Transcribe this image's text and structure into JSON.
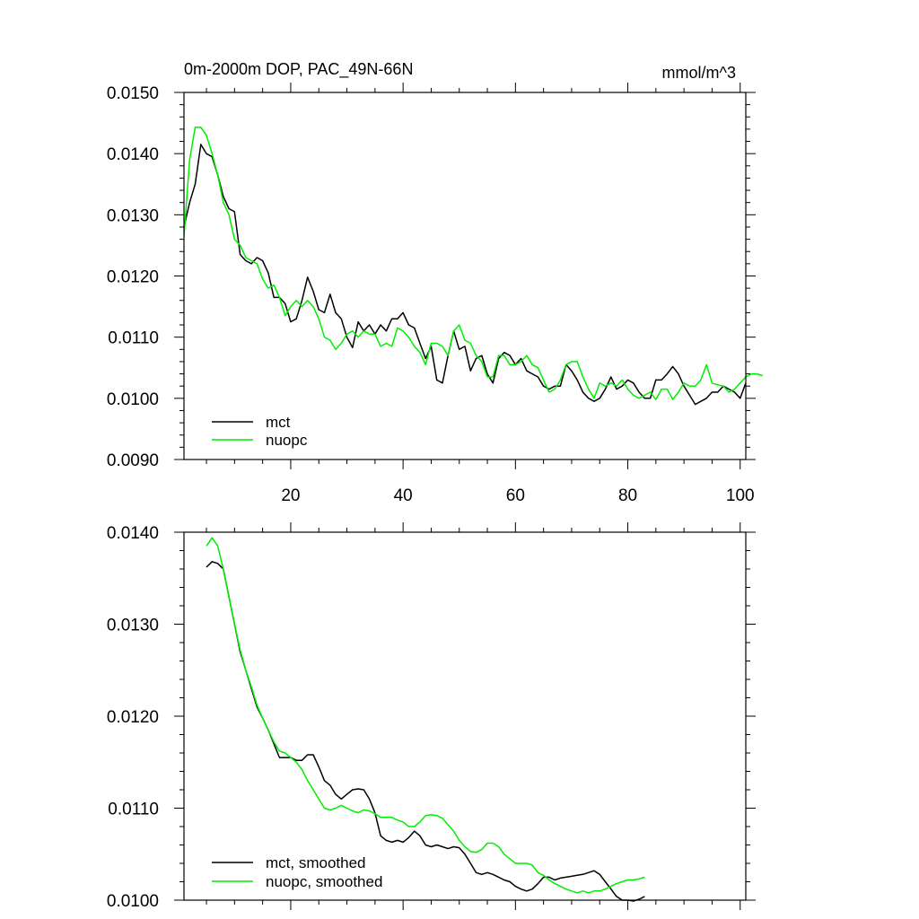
{
  "chart_data": [
    {
      "type": "line",
      "title_left": "0m-2000m DOP, PAC_49N-66N",
      "title_right": "mmol/m^3",
      "xlabel": "",
      "ylabel": "",
      "xlim": [
        1,
        101
      ],
      "ylim": [
        0.009,
        0.015
      ],
      "x_ticks": [
        20,
        40,
        60,
        80,
        100
      ],
      "x_tick_labels": [
        "20",
        "40",
        "60",
        "80",
        "100"
      ],
      "y_ticks": [
        0.009,
        0.01,
        0.011,
        0.012,
        0.013,
        0.014,
        0.015
      ],
      "y_tick_labels": [
        "0.0090",
        "0.0100",
        "0.0110",
        "0.0120",
        "0.0130",
        "0.0140",
        "0.0150"
      ],
      "legend_position": "bottom-left",
      "series": [
        {
          "name": "mct",
          "color": "#000000",
          "x_start": 1,
          "values": [
            0.0128,
            0.0132,
            0.0135,
            0.01415,
            0.014,
            0.01395,
            0.01365,
            0.0133,
            0.0131,
            0.01305,
            0.01235,
            0.01225,
            0.0122,
            0.0123,
            0.01225,
            0.01205,
            0.01165,
            0.01165,
            0.01155,
            0.01125,
            0.0113,
            0.0116,
            0.01198,
            0.01175,
            0.01145,
            0.0114,
            0.0117,
            0.0114,
            0.0113,
            0.011,
            0.01083,
            0.01125,
            0.0111,
            0.0112,
            0.01105,
            0.0112,
            0.0111,
            0.0113,
            0.0113,
            0.0114,
            0.0112,
            0.01115,
            0.0109,
            0.01065,
            0.01085,
            0.0103,
            0.01025,
            0.0107,
            0.0111,
            0.0108,
            0.01085,
            0.01045,
            0.01065,
            0.0107,
            0.0104,
            0.01025,
            0.01065,
            0.01075,
            0.0107,
            0.01055,
            0.01065,
            0.01045,
            0.0104,
            0.01035,
            0.0102,
            0.01015,
            0.0102,
            0.0102,
            0.01055,
            0.01045,
            0.0103,
            0.0101,
            0.01,
            0.00995,
            0.01,
            0.01015,
            0.01035,
            0.01015,
            0.0102,
            0.0103,
            0.01025,
            0.0101,
            0.01,
            0.01,
            0.0103,
            0.0103,
            0.0104,
            0.01052,
            0.0104,
            0.0102,
            0.01005,
            0.0099,
            0.00995,
            0.01,
            0.0101,
            0.0101,
            0.0102,
            0.01015,
            0.0101,
            0.01,
            0.01025
          ]
        },
        {
          "name": "nuopc",
          "color": "#00ee00",
          "x_start": 1,
          "values": [
            0.01265,
            0.0139,
            0.01443,
            0.01443,
            0.0143,
            0.014,
            0.01365,
            0.0132,
            0.013,
            0.0126,
            0.0125,
            0.0123,
            0.01225,
            0.0122,
            0.01195,
            0.0118,
            0.01185,
            0.01165,
            0.01135,
            0.0115,
            0.0116,
            0.0115,
            0.0116,
            0.0115,
            0.0113,
            0.011,
            0.01095,
            0.0108,
            0.0109,
            0.01105,
            0.0111,
            0.011,
            0.0111,
            0.01105,
            0.01105,
            0.01085,
            0.0109,
            0.01085,
            0.01115,
            0.0111,
            0.011,
            0.01085,
            0.01075,
            0.01055,
            0.0109,
            0.0109,
            0.01085,
            0.0107,
            0.0111,
            0.0112,
            0.01095,
            0.0109,
            0.0107,
            0.0106,
            0.01035,
            0.01035,
            0.0107,
            0.0107,
            0.01055,
            0.01055,
            0.0106,
            0.0107,
            0.01055,
            0.0105,
            0.0103,
            0.0101,
            0.01015,
            0.0103,
            0.01055,
            0.0106,
            0.0106,
            0.01035,
            0.01015,
            0.01,
            0.01025,
            0.0102,
            0.01025,
            0.0102,
            0.0103,
            0.01015,
            0.01005,
            0.01,
            0.01005,
            0.0101,
            0.00998,
            0.01015,
            0.01015,
            0.00998,
            0.0101,
            0.01025,
            0.0102,
            0.0102,
            0.0103,
            0.01055,
            0.01025,
            0.01022,
            0.0102,
            0.0101,
            0.01015,
            0.01025,
            0.01035,
            0.0104,
            0.0104,
            0.01037
          ]
        }
      ]
    },
    {
      "type": "line",
      "title_left": "",
      "title_right": "",
      "xlabel": "",
      "ylabel": "",
      "xlim": [
        1,
        101
      ],
      "ylim": [
        0.01,
        0.014
      ],
      "x_ticks": [
        20,
        40,
        60,
        80,
        100
      ],
      "x_tick_labels": [],
      "y_ticks": [
        0.01,
        0.011,
        0.012,
        0.013,
        0.014
      ],
      "y_tick_labels": [
        "0.0100",
        "0.0110",
        "0.0120",
        "0.0130",
        "0.0140"
      ],
      "legend_position": "bottom-left",
      "series": [
        {
          "name": "mct, smoothed",
          "color": "#000000",
          "x_start": 5,
          "values": [
            0.01362,
            0.01368,
            0.01366,
            0.0136,
            0.0133,
            0.013,
            0.0127,
            0.0125,
            0.0123,
            0.0121,
            0.01198,
            0.01185,
            0.0117,
            0.01155,
            0.01155,
            0.01155,
            0.01152,
            0.01152,
            0.01158,
            0.01158,
            0.01145,
            0.0113,
            0.01125,
            0.01115,
            0.0111,
            0.01115,
            0.0112,
            0.01121,
            0.0112,
            0.0111,
            0.01095,
            0.0107,
            0.01065,
            0.01063,
            0.01065,
            0.01063,
            0.01068,
            0.01075,
            0.0107,
            0.0106,
            0.01058,
            0.0106,
            0.01058,
            0.01056,
            0.01058,
            0.01057,
            0.0105,
            0.0104,
            0.0103,
            0.01028,
            0.0103,
            0.01028,
            0.01025,
            0.01022,
            0.0102,
            0.01015,
            0.01012,
            0.0101,
            0.01012,
            0.01018,
            0.01025,
            0.01025,
            0.01022,
            0.01024,
            0.01025,
            0.01026,
            0.01027,
            0.01028,
            0.0103,
            0.01032,
            0.01028,
            0.0102,
            0.01012,
            0.01004,
            0.01,
            0.01,
            0.00999,
            0.01001,
            0.01004
          ]
        },
        {
          "name": "nuopc, smoothed",
          "color": "#00ee00",
          "x_start": 5,
          "values": [
            0.01385,
            0.01394,
            0.01385,
            0.0136,
            0.0133,
            0.013,
            0.01272,
            0.0125,
            0.01232,
            0.01212,
            0.01198,
            0.01185,
            0.01172,
            0.01162,
            0.0116,
            0.01155,
            0.0115,
            0.01142,
            0.0113,
            0.0112,
            0.0111,
            0.011,
            0.01098,
            0.011,
            0.01103,
            0.011,
            0.01097,
            0.01095,
            0.01098,
            0.01097,
            0.01094,
            0.0109,
            0.0109,
            0.0109,
            0.01087,
            0.01085,
            0.0108,
            0.0108,
            0.01085,
            0.01092,
            0.01093,
            0.01092,
            0.01089,
            0.01082,
            0.01075,
            0.01065,
            0.01058,
            0.01053,
            0.01052,
            0.01055,
            0.01062,
            0.01062,
            0.01058,
            0.0105,
            0.01045,
            0.0104,
            0.0104,
            0.0104,
            0.01038,
            0.0103,
            0.01027,
            0.01022,
            0.01018,
            0.01015,
            0.01012,
            0.0101,
            0.01008,
            0.0101,
            0.01008,
            0.0101,
            0.0101,
            0.01012,
            0.01015,
            0.01018,
            0.0102,
            0.01022,
            0.01022,
            0.01023,
            0.01025
          ]
        }
      ]
    }
  ]
}
